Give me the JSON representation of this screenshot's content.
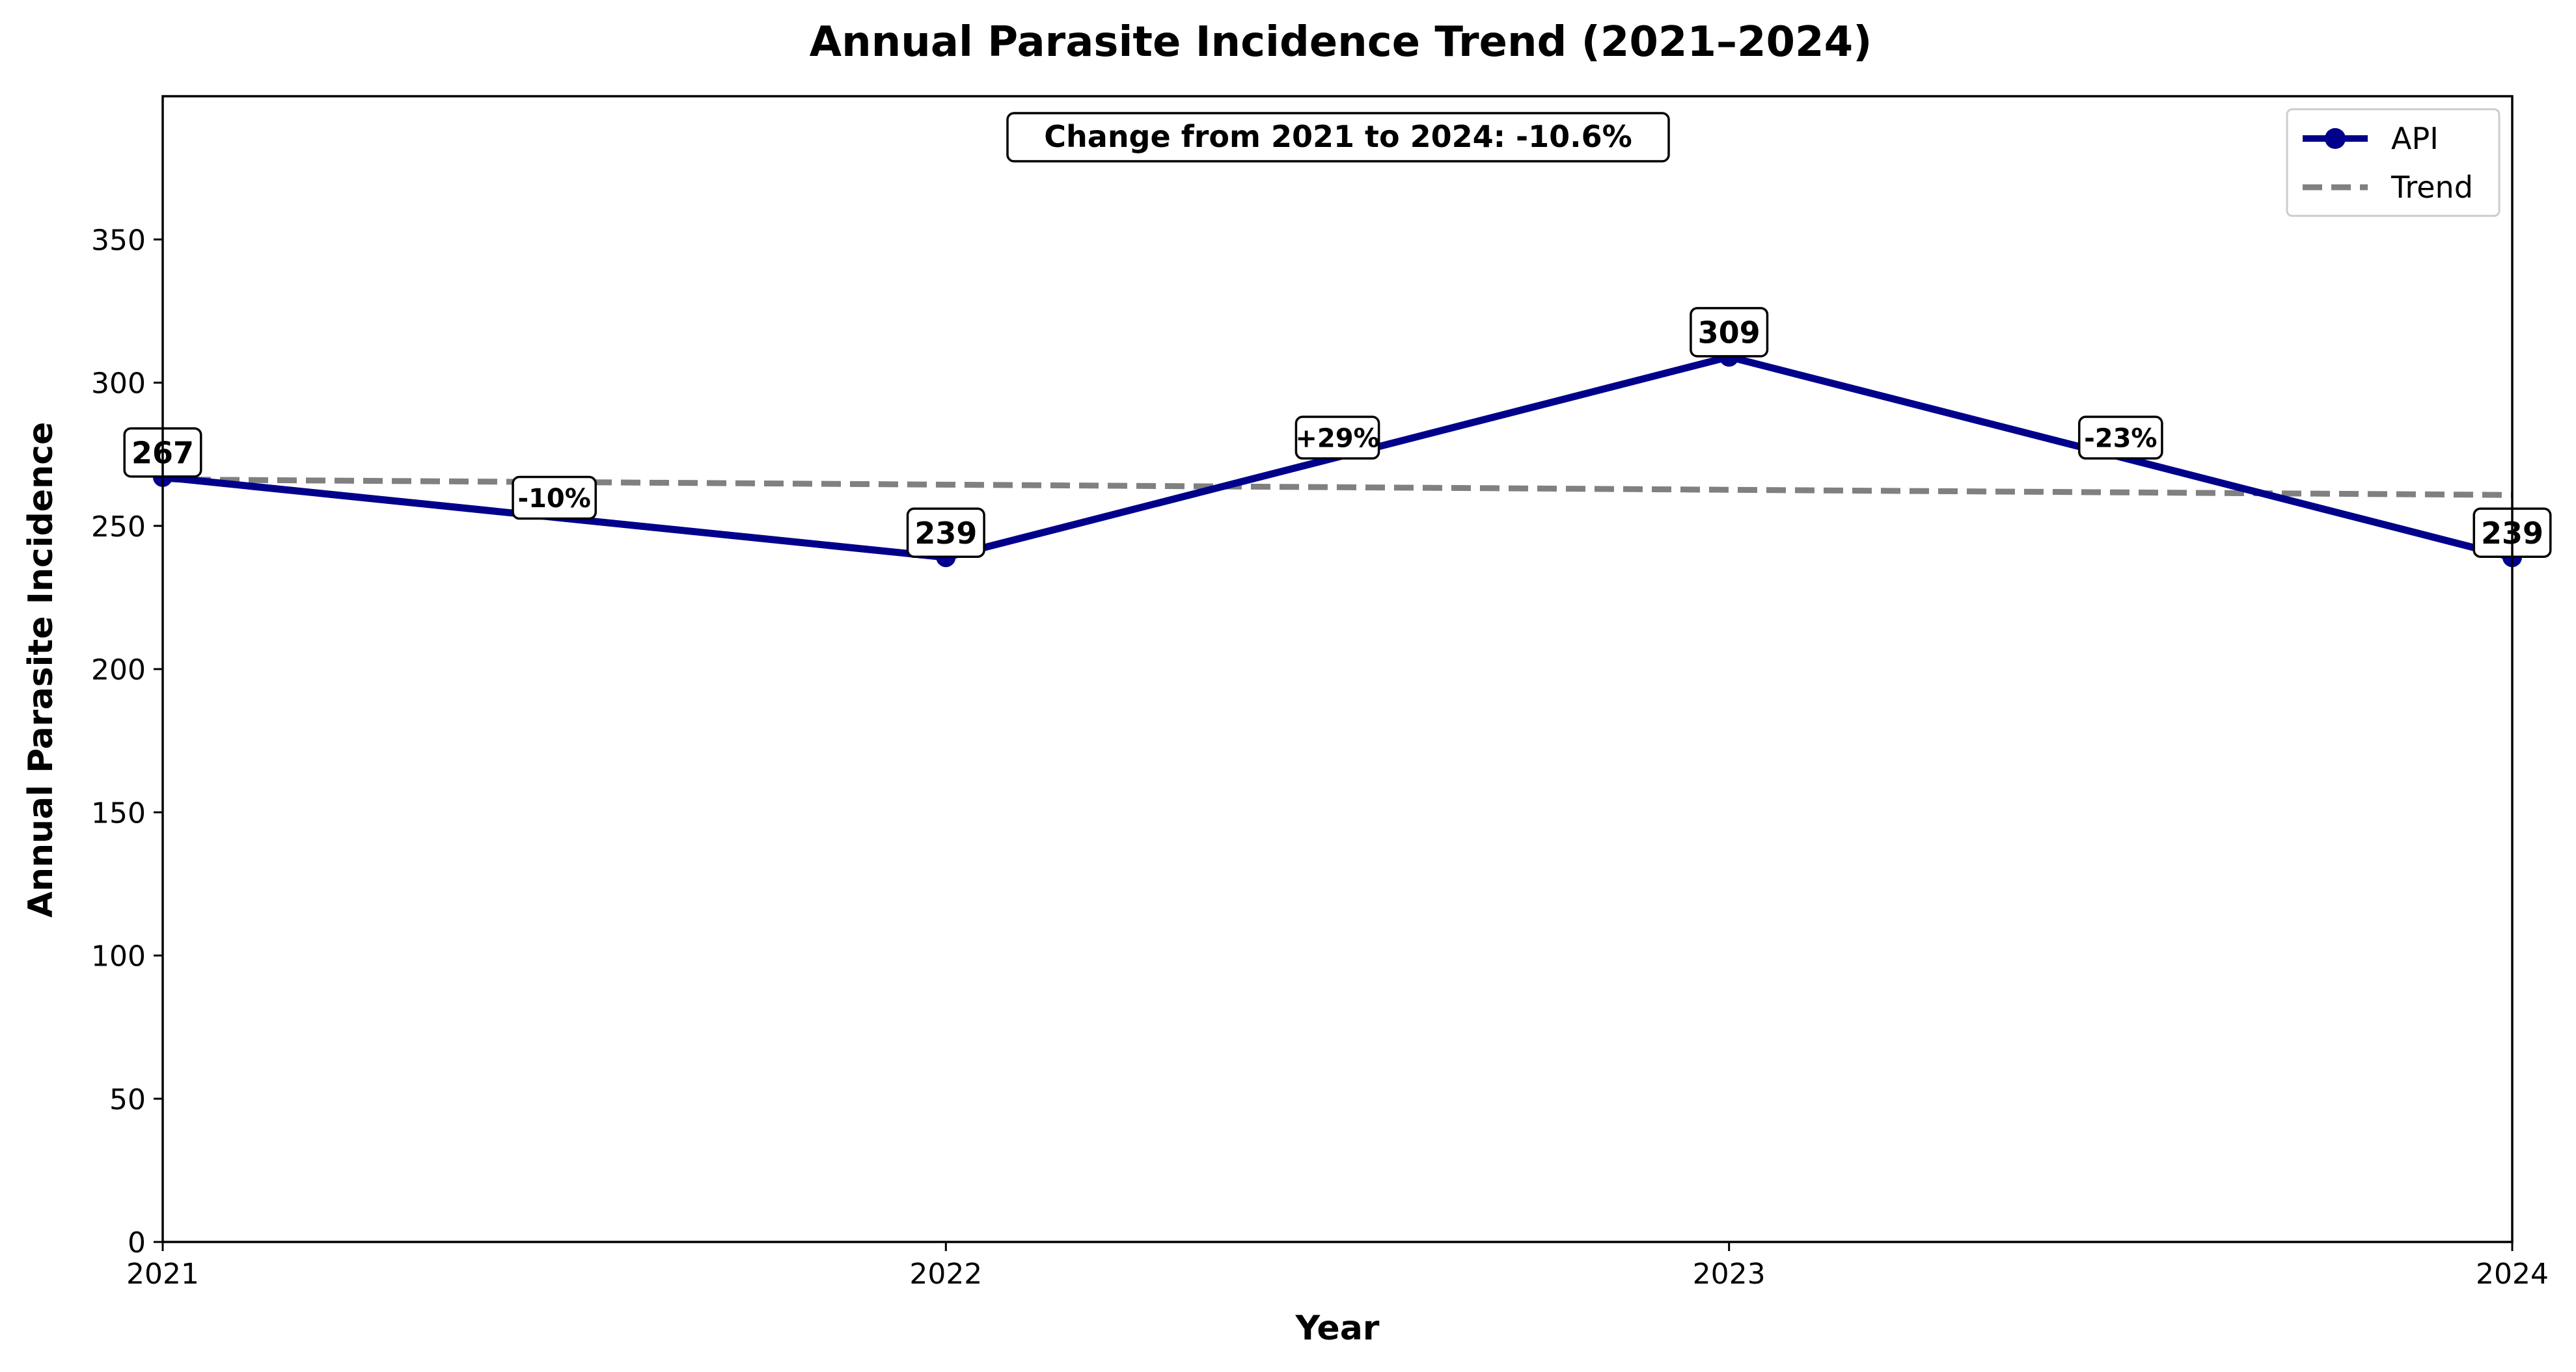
{
  "chart_data": {
    "type": "line",
    "title": "Annual Parasite Incidence Trend (2021–2024)",
    "xlabel": "Year",
    "ylabel": "Annual Parasite Incidence",
    "x": [
      2021,
      2022,
      2023,
      2024
    ],
    "x_tick_labels": [
      "2021",
      "2022",
      "2023",
      "2024"
    ],
    "ylim": [
      0,
      400
    ],
    "y_ticks": [
      0,
      50,
      100,
      150,
      200,
      250,
      300,
      350
    ],
    "grid": false,
    "legend_position": "top-right",
    "series": [
      {
        "name": "API",
        "values": [
          267,
          239,
          309,
          239
        ],
        "point_labels": [
          "267",
          "239",
          "309",
          "239"
        ],
        "color": "#00008b",
        "style": "solid-with-markers"
      },
      {
        "name": "Trend",
        "values": [
          266.2,
          264.4,
          262.6,
          260.8
        ],
        "color": "#808080",
        "style": "dashed"
      }
    ],
    "segment_changes": [
      "-10%",
      "+29%",
      "-23%"
    ],
    "annotation": "Change from 2021 to 2024: -10.6%"
  }
}
